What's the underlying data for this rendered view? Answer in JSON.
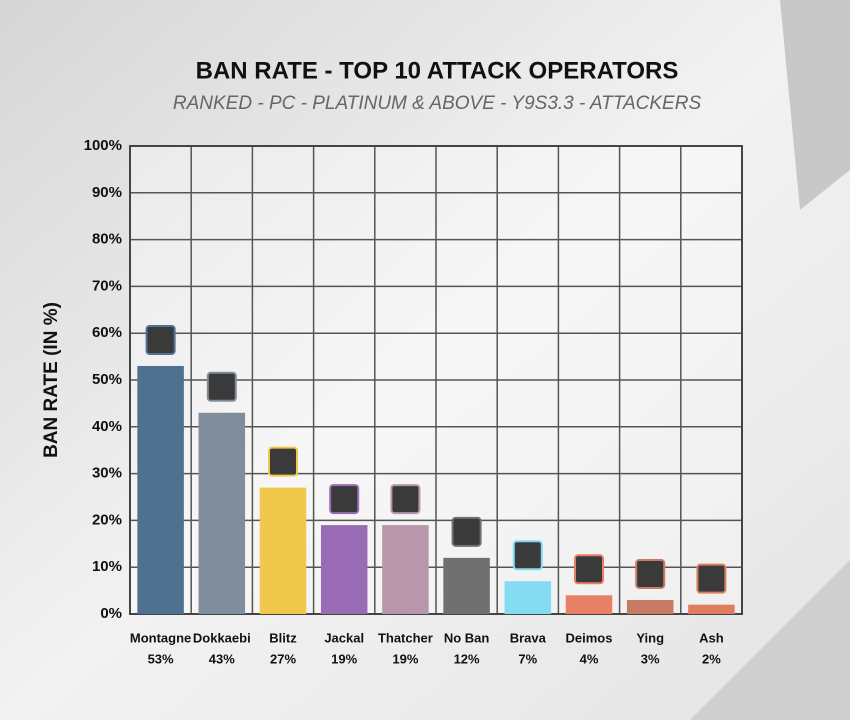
{
  "chart_data": {
    "type": "bar",
    "title": "BAN RATE - TOP 10 ATTACK OPERATORS",
    "subtitle": "RANKED - PC - PLATINUM & ABOVE - Y9S3.3 -  ATTACKERS",
    "ylabel": "BAN RATE (IN %)",
    "categories": [
      "Montagne",
      "Dokkaebi",
      "Blitz",
      "Jackal",
      "Thatcher",
      "No Ban",
      "Brava",
      "Deimos",
      "Ying",
      "Ash"
    ],
    "values": [
      53,
      43,
      27,
      19,
      19,
      12,
      7,
      4,
      3,
      2
    ],
    "value_labels": [
      "53%",
      "43%",
      "27%",
      "19%",
      "19%",
      "12%",
      "7%",
      "4%",
      "3%",
      "2%"
    ],
    "colors": [
      "#50708f",
      "#808e9c",
      "#f0c94c",
      "#9a6cb6",
      "#b996aa",
      "#707070",
      "#84dcf2",
      "#e88068",
      "#c77b63",
      "#e07d5f"
    ],
    "ylim": [
      0,
      100
    ],
    "yticks": [
      {
        "value": 0,
        "label": "0%"
      },
      {
        "value": 10,
        "label": "10%"
      },
      {
        "value": 20,
        "label": "20%"
      },
      {
        "value": 30,
        "label": "30%"
      },
      {
        "value": 40,
        "label": "40%"
      },
      {
        "value": 50,
        "label": "50%"
      },
      {
        "value": 60,
        "label": "60%"
      },
      {
        "value": 70,
        "label": "70%"
      },
      {
        "value": 80,
        "label": "80%"
      },
      {
        "value": 90,
        "label": "90%"
      },
      {
        "value": 100,
        "label": "100%"
      }
    ],
    "grid": true
  }
}
